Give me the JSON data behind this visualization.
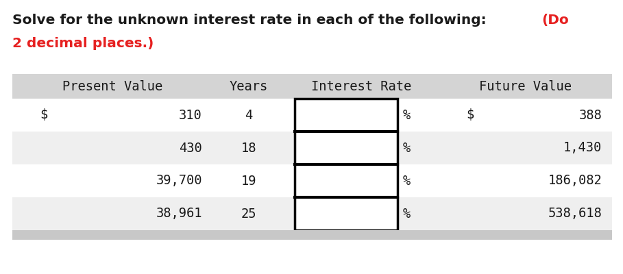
{
  "title_black": "Solve for the unknown interest rate in each of the following: ",
  "title_red_1": "(Do",
  "title_red_2": "2 decimal places.)",
  "bg_color": "#ffffff",
  "header_bg": "#d4d4d4",
  "row_bg_white": "#ffffff",
  "row_bg_gray": "#efefef",
  "footer_bg": "#c8c8c8",
  "box_color": "#000000",
  "text_color": "#1a1a1a",
  "red_color": "#e62020",
  "monospace_font": "DejaVu Sans Mono",
  "sans_font": "DejaVu Sans",
  "title_fontsize": 14.5,
  "header_fontsize": 13.5,
  "cell_fontsize": 13.5,
  "rows": [
    {
      "pv_dollar": true,
      "pv": "310",
      "years": "4",
      "fv_dollar": true,
      "fv": "388"
    },
    {
      "pv_dollar": false,
      "pv": "430",
      "years": "18",
      "fv_dollar": false,
      "fv": "1,430"
    },
    {
      "pv_dollar": false,
      "pv": "39,700",
      "years": "19",
      "fv_dollar": false,
      "fv": "186,082"
    },
    {
      "pv_dollar": false,
      "pv": "38,961",
      "years": "25",
      "fv_dollar": false,
      "fv": "538,618"
    }
  ]
}
